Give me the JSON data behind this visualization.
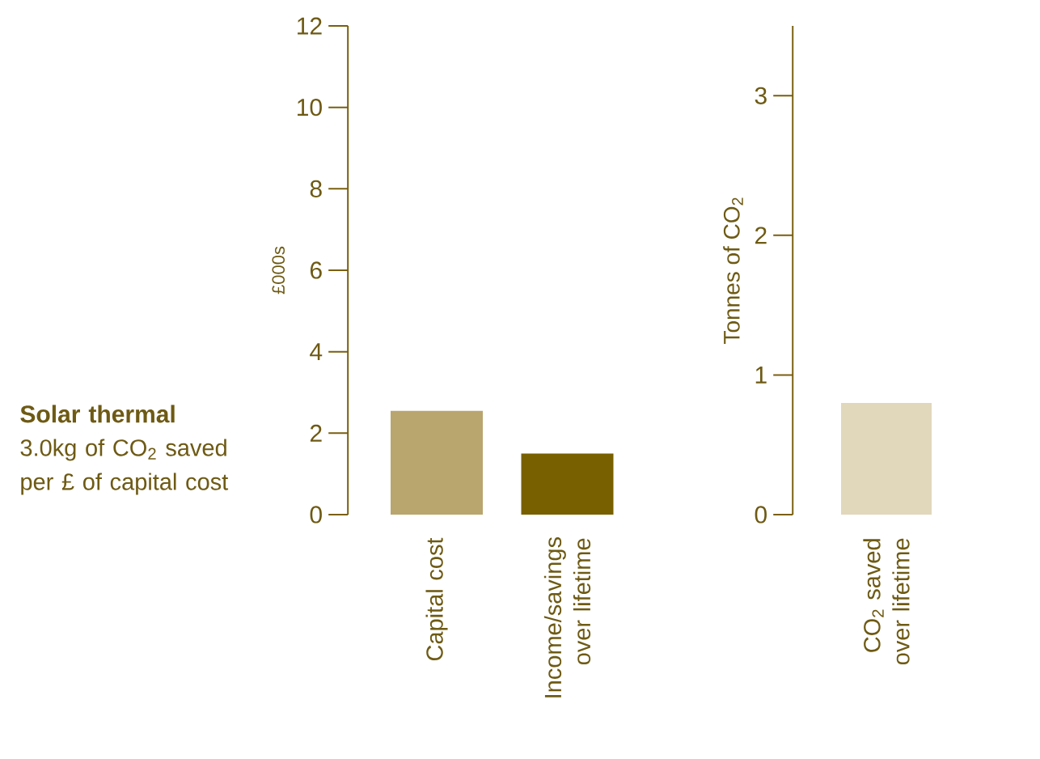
{
  "chart_data": [
    {
      "type": "other",
      "title": "Solar thermal",
      "annotations": [
        "3.0kg of CO$_{2}$ saved per £ of capital cost"
      ]
    },
    {
      "type": "bar",
      "ylabel": "£000s",
      "categories": [
        "Capital cost",
        "Income/savings over lifetime"
      ],
      "values": [
        2.55,
        1.5
      ],
      "colors": [
        "#b9a56e",
        "#786000"
      ],
      "ylim": [
        0,
        12
      ],
      "yticks": [
        0,
        2,
        4,
        6,
        8,
        10,
        12
      ]
    },
    {
      "type": "bar",
      "ylabel": "Tonnes of CO$_{2}$",
      "categories": [
        "CO$_{2}$ saved over lifetime"
      ],
      "values": [
        0.8
      ],
      "colors": [
        "#e1d7bb"
      ],
      "ylim": [
        0,
        3.5
      ],
      "yticks": [
        0,
        1,
        2,
        3
      ]
    }
  ]
}
